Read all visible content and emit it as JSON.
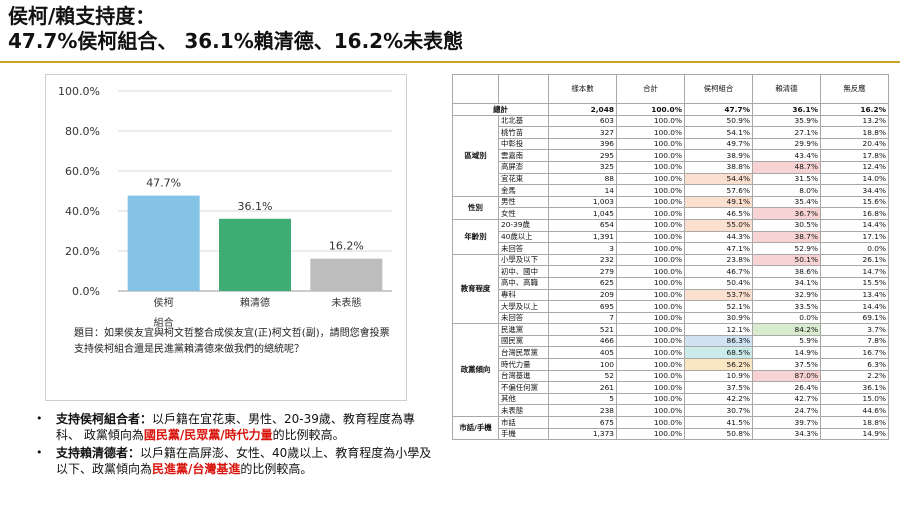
{
  "title": {
    "line1": "侯柯/賴支持度：",
    "line2": "47.7%侯柯組合、 36.1%賴清德、16.2%未表態"
  },
  "chart_data": {
    "type": "bar",
    "categories": [
      "侯柯組合",
      "賴清德",
      "未表態"
    ],
    "category_lines": [
      [
        "侯柯",
        "組合"
      ],
      [
        "賴清德"
      ],
      [
        "未表態"
      ]
    ],
    "values": [
      47.7,
      36.1,
      16.2
    ],
    "value_labels": [
      "47.7%",
      "36.1%",
      "16.2%"
    ],
    "colors": [
      "#84c3e6",
      "#3fad73",
      "#bdbdbd"
    ],
    "ylim": [
      0,
      100
    ],
    "yticks": [
      "0.0%",
      "20.0%",
      "40.0%",
      "60.0%",
      "80.0%",
      "100.0%"
    ],
    "grid": true
  },
  "question": "題目：如果侯友宜與柯文哲整合成侯友宜(正)柯文哲(副)，請問您會投票支持侯柯組合還是民進黨賴清德來做我們的總統呢？",
  "bullets": [
    {
      "lead": "支持侯柯組合者：",
      "runs": [
        {
          "text": "以戶籍在宜花東、男性、20-39歲、教育程度為專科、 政黨傾向為",
          "red": false
        },
        {
          "text": "國民黨/民眾黨/時代力量",
          "red": true
        },
        {
          "text": "的比例較高。",
          "red": false
        }
      ]
    },
    {
      "lead": "支持賴清德者：",
      "runs": [
        {
          "text": "以戶籍在高屏澎、女性、40歲以上、教育程度為小學及以下、政黨傾向為",
          "red": false
        },
        {
          "text": "民進黨/台灣基進",
          "red": true
        },
        {
          "text": "的比例較高。",
          "red": false
        }
      ]
    }
  ],
  "table": {
    "headers": [
      "樣本數",
      "合計",
      "侯柯組合",
      "賴清德",
      "無反應"
    ],
    "total": {
      "label": "總計",
      "values": [
        "2,048",
        "100.0%",
        "47.7%",
        "36.1%",
        "16.2%"
      ]
    },
    "groups": [
      {
        "name": "區域別",
        "rows": [
          {
            "label": "北北基",
            "values": [
              "603",
              "100.0%",
              "50.9%",
              "35.9%",
              "13.2%"
            ]
          },
          {
            "label": "桃竹苗",
            "values": [
              "327",
              "100.0%",
              "54.1%",
              "27.1%",
              "18.8%"
            ]
          },
          {
            "label": "中彰投",
            "values": [
              "396",
              "100.0%",
              "49.7%",
              "29.9%",
              "20.4%"
            ]
          },
          {
            "label": "雲嘉南",
            "values": [
              "295",
              "100.0%",
              "38.9%",
              "43.4%",
              "17.8%"
            ]
          },
          {
            "label": "高屏澎",
            "values": [
              "325",
              "100.0%",
              "38.8%",
              "48.7%",
              "12.4%"
            ],
            "hl": [
              null,
              null,
              null,
              "#f8d3d3",
              null
            ]
          },
          {
            "label": "宜花東",
            "values": [
              "88",
              "100.0%",
              "54.4%",
              "31.5%",
              "14.0%"
            ],
            "hl": [
              null,
              null,
              "#fbe0d0",
              null,
              null
            ]
          },
          {
            "label": "金馬",
            "values": [
              "14",
              "100.0%",
              "57.6%",
              "8.0%",
              "34.4%"
            ]
          }
        ]
      },
      {
        "name": "性別",
        "rows": [
          {
            "label": "男性",
            "values": [
              "1,003",
              "100.0%",
              "49.1%",
              "35.4%",
              "15.6%"
            ],
            "hl": [
              null,
              null,
              "#fbe0d0",
              null,
              null
            ]
          },
          {
            "label": "女性",
            "values": [
              "1,045",
              "100.0%",
              "46.5%",
              "36.7%",
              "16.8%"
            ],
            "hl": [
              null,
              null,
              null,
              "#f8d3d3",
              null
            ]
          }
        ]
      },
      {
        "name": "年齡別",
        "rows": [
          {
            "label": "20-39歲",
            "values": [
              "654",
              "100.0%",
              "55.0%",
              "30.5%",
              "14.4%"
            ],
            "hl": [
              null,
              null,
              "#fbe0d0",
              null,
              null
            ]
          },
          {
            "label": "40歲以上",
            "values": [
              "1,391",
              "100.0%",
              "44.3%",
              "38.7%",
              "17.1%"
            ],
            "hl": [
              null,
              null,
              null,
              "#f8d3d3",
              null
            ]
          },
          {
            "label": "未回答",
            "values": [
              "3",
              "100.0%",
              "47.1%",
              "52.9%",
              "0.0%"
            ]
          }
        ]
      },
      {
        "name": "教育程度",
        "rows": [
          {
            "label": "小學及以下",
            "values": [
              "232",
              "100.0%",
              "23.8%",
              "50.1%",
              "26.1%"
            ],
            "hl": [
              null,
              null,
              null,
              "#f8d3d3",
              null
            ]
          },
          {
            "label": "初中、國中",
            "values": [
              "279",
              "100.0%",
              "46.7%",
              "38.6%",
              "14.7%"
            ]
          },
          {
            "label": "高中、高職",
            "values": [
              "625",
              "100.0%",
              "50.4%",
              "34.1%",
              "15.5%"
            ]
          },
          {
            "label": "專科",
            "values": [
              "209",
              "100.0%",
              "53.7%",
              "32.9%",
              "13.4%"
            ],
            "hl": [
              null,
              null,
              "#fbe0d0",
              null,
              null
            ]
          },
          {
            "label": "大學及以上",
            "values": [
              "695",
              "100.0%",
              "52.1%",
              "33.5%",
              "14.4%"
            ]
          },
          {
            "label": "未回答",
            "values": [
              "7",
              "100.0%",
              "30.9%",
              "0.0%",
              "69.1%"
            ]
          }
        ]
      },
      {
        "name": "政黨傾向",
        "rows": [
          {
            "label": "民進黨",
            "values": [
              "521",
              "100.0%",
              "12.1%",
              "84.2%",
              "3.7%"
            ],
            "hl": [
              null,
              null,
              null,
              "#d9ecd0",
              null
            ]
          },
          {
            "label": "國民黨",
            "values": [
              "466",
              "100.0%",
              "86.3%",
              "5.9%",
              "7.8%"
            ],
            "hl": [
              null,
              null,
              "#cfe3f3",
              null,
              null
            ]
          },
          {
            "label": "台灣民眾黨",
            "values": [
              "405",
              "100.0%",
              "68.5%",
              "14.9%",
              "16.7%"
            ],
            "hl": [
              null,
              null,
              "#ccecec",
              null,
              null
            ]
          },
          {
            "label": "時代力量",
            "values": [
              "100",
              "100.0%",
              "56.2%",
              "37.5%",
              "6.3%"
            ],
            "hl": [
              null,
              null,
              "#fbe6c4",
              null,
              null
            ]
          },
          {
            "label": "台灣基進",
            "values": [
              "52",
              "100.0%",
              "10.9%",
              "87.0%",
              "2.2%"
            ],
            "hl": [
              null,
              null,
              null,
              "#f8d3d3",
              null
            ]
          },
          {
            "label": "不偏任何黨",
            "values": [
              "261",
              "100.0%",
              "37.5%",
              "26.4%",
              "36.1%"
            ]
          },
          {
            "label": "其他",
            "values": [
              "5",
              "100.0%",
              "42.2%",
              "42.7%",
              "15.0%"
            ]
          },
          {
            "label": "未表態",
            "values": [
              "238",
              "100.0%",
              "30.7%",
              "24.7%",
              "44.6%"
            ]
          }
        ]
      },
      {
        "name": "市話/手機",
        "rows": [
          {
            "label": "市話",
            "values": [
              "675",
              "100.0%",
              "41.5%",
              "39.7%",
              "18.8%"
            ]
          },
          {
            "label": "手機",
            "values": [
              "1,373",
              "100.0%",
              "50.8%",
              "34.3%",
              "14.9%"
            ]
          }
        ]
      }
    ]
  }
}
